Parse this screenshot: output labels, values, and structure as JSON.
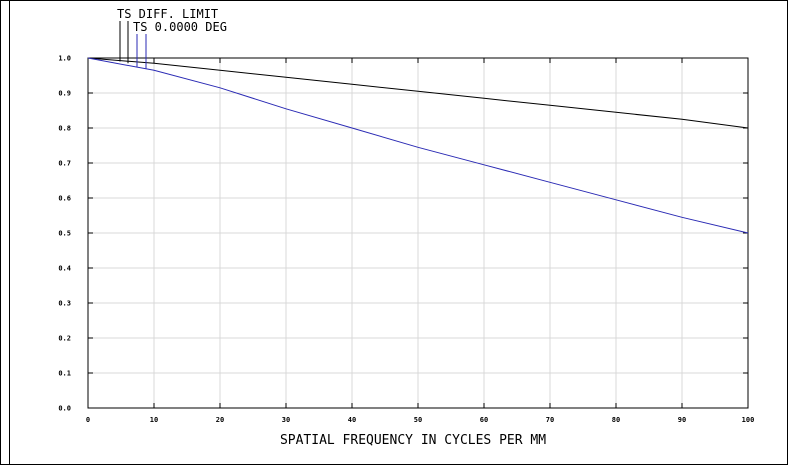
{
  "chart_data": {
    "type": "line",
    "xlabel": "SPATIAL FREQUENCY IN CYCLES PER MM",
    "ylabel": "",
    "xlim": [
      0,
      100
    ],
    "ylim": [
      0.0,
      1.0
    ],
    "x_ticks": [
      "0",
      "10",
      "20",
      "30",
      "40",
      "50",
      "60",
      "70",
      "80",
      "90",
      "100"
    ],
    "y_ticks": [
      "0.0",
      "0.1",
      "0.2",
      "0.3",
      "0.4",
      "0.5",
      "0.6",
      "0.7",
      "0.8",
      "0.9",
      "1.0"
    ],
    "grid": true,
    "legend_position": "top-left",
    "legend": [
      "TS DIFF. LIMIT",
      "TS 0.0000 DEG"
    ],
    "series": [
      {
        "name": "TS DIFF. LIMIT",
        "color": "#000000",
        "x": [
          0,
          10,
          20,
          30,
          40,
          50,
          60,
          70,
          80,
          90,
          100
        ],
        "y": [
          1.0,
          0.985,
          0.965,
          0.945,
          0.925,
          0.905,
          0.885,
          0.865,
          0.845,
          0.825,
          0.8
        ]
      },
      {
        "name": "TS 0.0000 DEG",
        "color": "#2a2ab4",
        "x": [
          0,
          10,
          20,
          30,
          40,
          50,
          60,
          70,
          80,
          90,
          100
        ],
        "y": [
          1.0,
          0.965,
          0.915,
          0.855,
          0.8,
          0.745,
          0.695,
          0.645,
          0.595,
          0.545,
          0.5
        ]
      }
    ]
  }
}
